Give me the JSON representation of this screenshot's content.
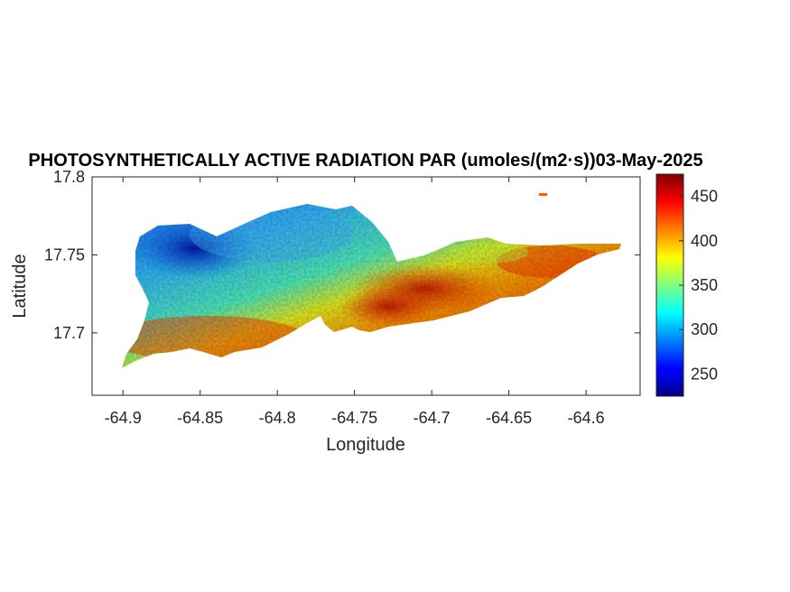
{
  "chart_data": {
    "type": "heatmap",
    "title": "PHOTOSYNTHETICALLY ACTIVE RADIATION PAR (umoles/(m2·s))03-May-2025",
    "xlabel": "Longitude",
    "ylabel": "Latitude",
    "xlim": [
      -64.92,
      -64.565
    ],
    "ylim": [
      17.66,
      17.8
    ],
    "xticks": [
      -64.9,
      -64.85,
      -64.8,
      -64.75,
      -64.7,
      -64.65,
      -64.6
    ],
    "xtick_labels": [
      "-64.9",
      "-64.85",
      "-64.8",
      "-64.75",
      "-64.7",
      "-64.65",
      "-64.6"
    ],
    "yticks": [
      17.7,
      17.75,
      17.8
    ],
    "ytick_labels": [
      "17.7",
      "17.75",
      "17.8"
    ],
    "colorbar": {
      "colormap": "jet",
      "clim": [
        225,
        475
      ],
      "ticks": [
        250,
        300,
        350,
        400,
        450
      ],
      "tick_labels": [
        "250",
        "300",
        "350",
        "400",
        "450"
      ]
    },
    "grid": false,
    "field_samples": [
      {
        "lon": -64.88,
        "lat": 17.76,
        "value": 250
      },
      {
        "lon": -64.85,
        "lat": 17.745,
        "value": 290
      },
      {
        "lon": -64.8,
        "lat": 17.76,
        "value": 310
      },
      {
        "lon": -64.76,
        "lat": 17.765,
        "value": 315
      },
      {
        "lon": -64.75,
        "lat": 17.745,
        "value": 330
      },
      {
        "lon": -64.7,
        "lat": 17.755,
        "value": 345
      },
      {
        "lon": -64.65,
        "lat": 17.755,
        "value": 360
      },
      {
        "lon": -64.88,
        "lat": 17.695,
        "value": 410
      },
      {
        "lon": -64.85,
        "lat": 17.695,
        "value": 420
      },
      {
        "lon": -64.8,
        "lat": 17.705,
        "value": 395
      },
      {
        "lon": -64.75,
        "lat": 17.715,
        "value": 420
      },
      {
        "lon": -64.7,
        "lat": 17.73,
        "value": 450
      },
      {
        "lon": -64.67,
        "lat": 17.735,
        "value": 440
      },
      {
        "lon": -64.62,
        "lat": 17.745,
        "value": 435
      },
      {
        "lon": -64.58,
        "lat": 17.755,
        "value": 440
      },
      {
        "lon": -64.9,
        "lat": 17.68,
        "value": 360
      }
    ]
  }
}
